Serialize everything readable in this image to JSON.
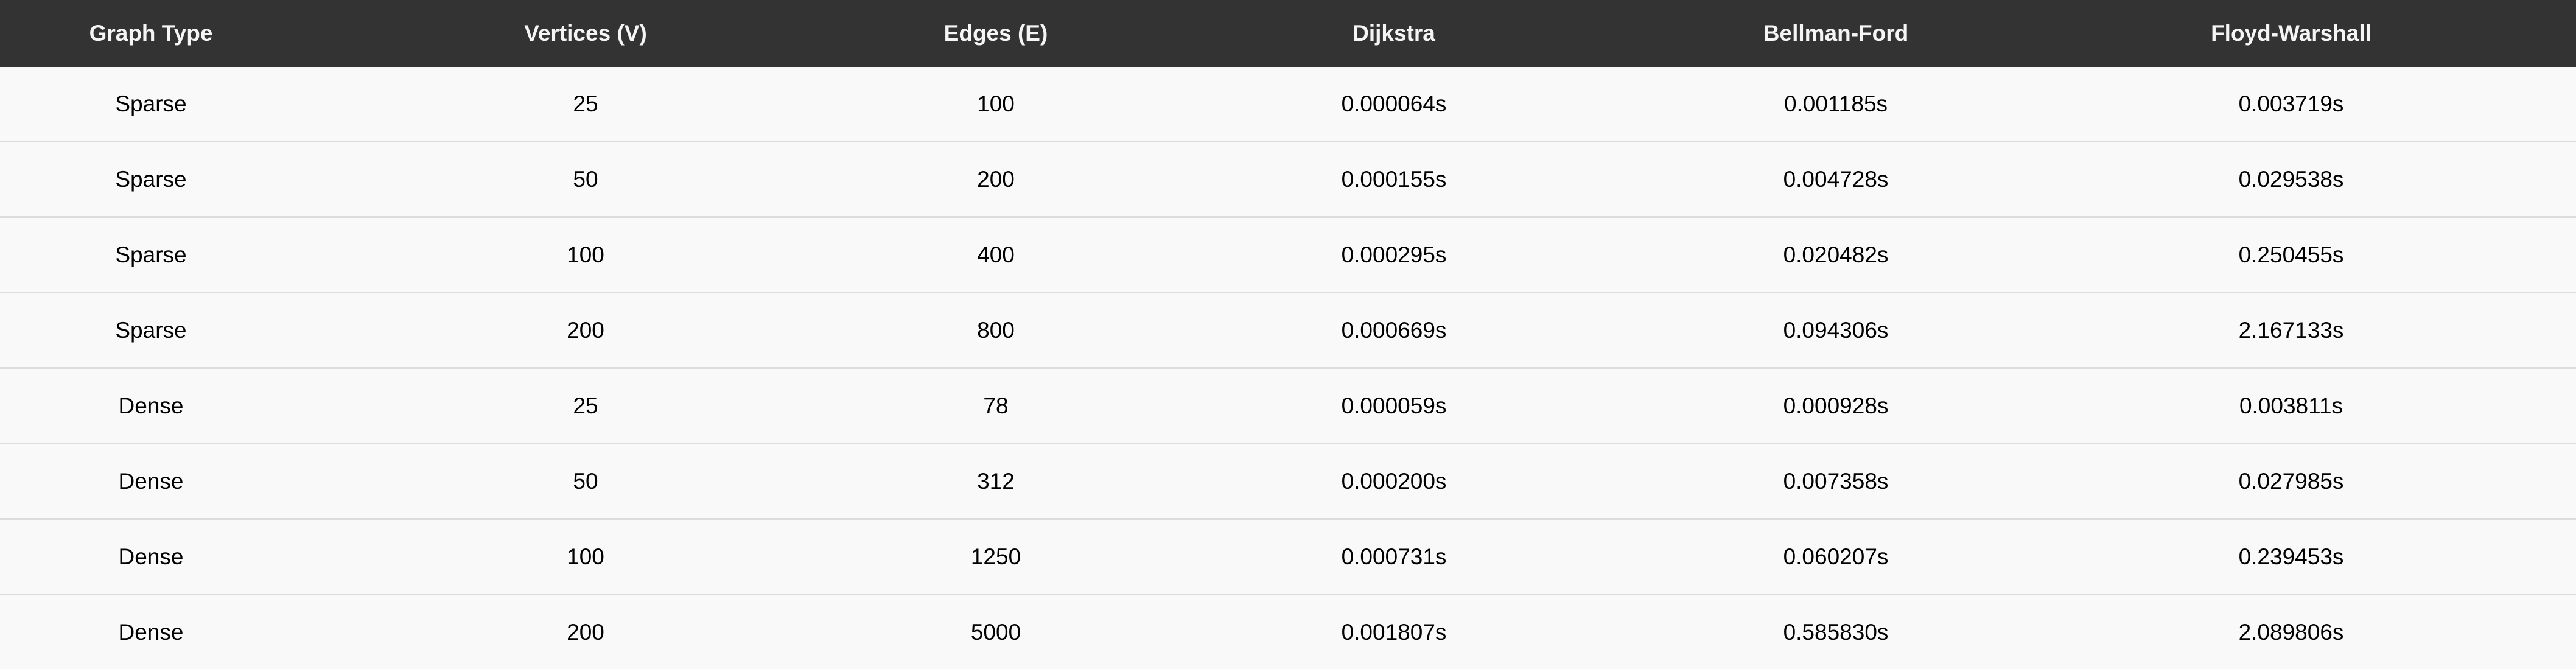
{
  "table": {
    "headers": [
      "Graph Type",
      "Vertices (V)",
      "Edges (E)",
      "Dijkstra",
      "Bellman-Ford",
      "Floyd-Warshall"
    ],
    "rows": [
      [
        "Sparse",
        "25",
        "100",
        "0.000064s",
        "0.001185s",
        "0.003719s"
      ],
      [
        "Sparse",
        "50",
        "200",
        "0.000155s",
        "0.004728s",
        "0.029538s"
      ],
      [
        "Sparse",
        "100",
        "400",
        "0.000295s",
        "0.020482s",
        "0.250455s"
      ],
      [
        "Sparse",
        "200",
        "800",
        "0.000669s",
        "0.094306s",
        "2.167133s"
      ],
      [
        "Dense",
        "25",
        "78",
        "0.000059s",
        "0.000928s",
        "0.003811s"
      ],
      [
        "Dense",
        "50",
        "312",
        "0.000200s",
        "0.007358s",
        "0.027985s"
      ],
      [
        "Dense",
        "100",
        "1250",
        "0.000731s",
        "0.060207s",
        "0.239453s"
      ],
      [
        "Dense",
        "200",
        "5000",
        "0.001807s",
        "0.585830s",
        "2.089806s"
      ]
    ]
  },
  "colors": {
    "header_background": "#333333",
    "header_text": "#f5f5f5",
    "row_background": "#f9f9f9",
    "row_divider": "#dcdcdc"
  }
}
